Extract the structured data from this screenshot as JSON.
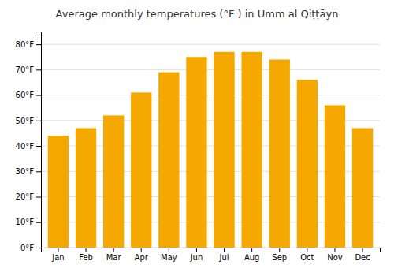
{
  "chart_data": {
    "type": "bar",
    "title": "Average monthly temperatures (°F ) in Umm al Qiṭṭāyn",
    "categories": [
      "Jan",
      "Feb",
      "Mar",
      "Apr",
      "May",
      "Jun",
      "Jul",
      "Aug",
      "Sep",
      "Oct",
      "Nov",
      "Dec"
    ],
    "values": [
      44,
      47,
      52,
      61,
      69,
      75,
      77,
      77,
      74,
      66,
      56,
      47
    ],
    "color": "#F5A800",
    "ylim": [
      0,
      85
    ],
    "yticks": [
      {
        "value": 0,
        "label": "0°F"
      },
      {
        "value": 10,
        "label": "10°F"
      },
      {
        "value": 20,
        "label": "20°F"
      },
      {
        "value": 30,
        "label": "30°F"
      },
      {
        "value": 40,
        "label": "40°F"
      },
      {
        "value": 50,
        "label": "50°F"
      },
      {
        "value": 60,
        "label": "60°F"
      },
      {
        "value": 70,
        "label": "70°F"
      },
      {
        "value": 80,
        "label": "80°F"
      }
    ],
    "grid": true
  }
}
